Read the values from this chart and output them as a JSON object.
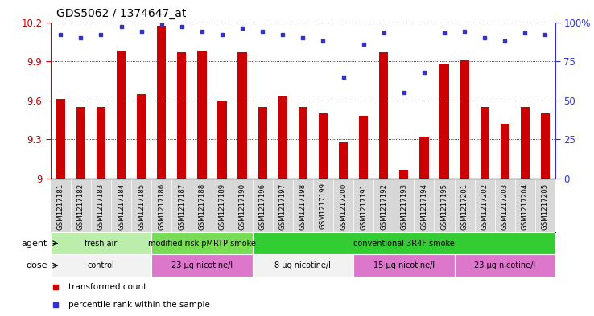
{
  "title": "GDS5062 / 1374647_at",
  "samples": [
    "GSM1217181",
    "GSM1217182",
    "GSM1217183",
    "GSM1217184",
    "GSM1217185",
    "GSM1217186",
    "GSM1217187",
    "GSM1217188",
    "GSM1217189",
    "GSM1217190",
    "GSM1217196",
    "GSM1217197",
    "GSM1217198",
    "GSM1217199",
    "GSM1217200",
    "GSM1217191",
    "GSM1217192",
    "GSM1217193",
    "GSM1217194",
    "GSM1217195",
    "GSM1217201",
    "GSM1217202",
    "GSM1217203",
    "GSM1217204",
    "GSM1217205"
  ],
  "transformed_count": [
    9.61,
    9.55,
    9.55,
    9.98,
    9.65,
    10.17,
    9.97,
    9.98,
    9.6,
    9.97,
    9.55,
    9.63,
    9.55,
    9.5,
    9.28,
    9.48,
    9.97,
    9.06,
    9.32,
    9.88,
    9.91,
    9.55,
    9.42,
    9.55,
    9.5
  ],
  "percentile_rank": [
    92,
    90,
    92,
    97,
    94,
    98,
    97,
    94,
    92,
    96,
    94,
    92,
    90,
    88,
    65,
    86,
    93,
    55,
    68,
    93,
    94,
    90,
    88,
    93,
    92
  ],
  "ymin": 9.0,
  "ymax": 10.2,
  "yticks_left": [
    9.0,
    9.3,
    9.6,
    9.9,
    10.2
  ],
  "ytick_labels_left": [
    "9",
    "9.3",
    "9.6",
    "9.9",
    "10.2"
  ],
  "right_yticks_pct": [
    0,
    25,
    50,
    75,
    100
  ],
  "right_ytick_labels": [
    "0",
    "25",
    "50",
    "75",
    "100%"
  ],
  "bar_color": "#cc0000",
  "dot_color": "#3333cc",
  "agent_groups": [
    {
      "label": "fresh air",
      "start": 0,
      "end": 5,
      "color": "#bbeeaa"
    },
    {
      "label": "modified risk pMRTP smoke",
      "start": 5,
      "end": 10,
      "color": "#77dd55"
    },
    {
      "label": "conventional 3R4F smoke",
      "start": 10,
      "end": 25,
      "color": "#33cc33"
    }
  ],
  "dose_groups": [
    {
      "label": "control",
      "start": 0,
      "end": 5,
      "color": "#f2f2f2"
    },
    {
      "label": "23 μg nicotine/l",
      "start": 5,
      "end": 10,
      "color": "#dd77cc"
    },
    {
      "label": "8 μg nicotine/l",
      "start": 10,
      "end": 15,
      "color": "#f2f2f2"
    },
    {
      "label": "15 μg nicotine/l",
      "start": 15,
      "end": 20,
      "color": "#dd77cc"
    },
    {
      "label": "23 μg nicotine/l",
      "start": 20,
      "end": 25,
      "color": "#dd77cc"
    }
  ],
  "legend_items": [
    {
      "label": "transformed count",
      "color": "#cc0000"
    },
    {
      "label": "percentile rank within the sample",
      "color": "#3333cc"
    }
  ],
  "xlabel_bg_color": "#d8d8d8",
  "plot_bg_color": "#ffffff"
}
